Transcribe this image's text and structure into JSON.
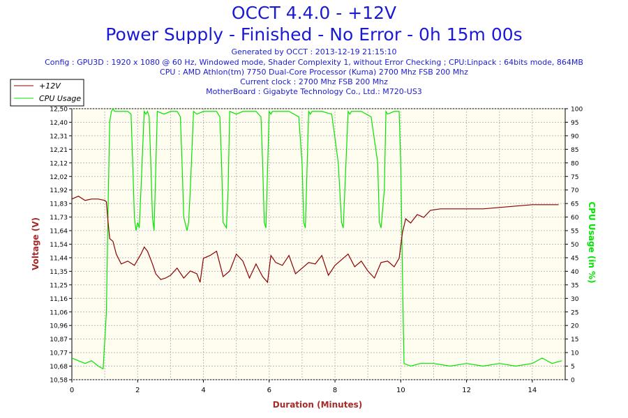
{
  "header": {
    "title": "OCCT 4.4.0 - +12V",
    "subtitle": "Power Supply - Finished - No Error - 0h 15m 00s",
    "info_lines": [
      "Generated by OCCT : 2013-12-19 21:15:10",
      "Config : GPU3D : 1920 x 1080 @ 60 Hz, Windowed mode, Shader Complexity 1, without Error Checking ; CPU:Linpack : 64bits mode, 864MB",
      "CPU : AMD Athlon(tm) 7750 Dual-Core Processor (Kuma) 2700 Mhz FSB 200 Mhz",
      "Current clock : 2700 Mhz FSB 200 Mhz",
      "MotherBoard : Gigabyte Technology Co., Ltd.: M720-US3"
    ]
  },
  "colors": {
    "text_blue": "#1a1ad6",
    "voltage": "#8b0000",
    "cpu": "#00e600",
    "axis_label": "#a52a2a",
    "plot_bg": "#fffcf0",
    "grid": "#bbbbbb"
  },
  "chart_data": {
    "type": "line",
    "xlabel": "Duration (Minutes)",
    "ylabel_left": "Voltage (V)",
    "ylabel_right": "CPU Usage (in %)",
    "xlim": [
      0,
      15
    ],
    "ylim_left": [
      10.58,
      12.5
    ],
    "ylim_right": [
      0,
      100
    ],
    "x_ticks": [
      "0",
      "2",
      "4",
      "6",
      "8",
      "10",
      "12",
      "14"
    ],
    "y_left_ticks": [
      "10,58",
      "10,68",
      "10,77",
      "10,87",
      "10,96",
      "11,06",
      "11,16",
      "11,25",
      "11,35",
      "11,44",
      "11,54",
      "11,64",
      "11,73",
      "11,83",
      "11,92",
      "12,02",
      "12,12",
      "12,21",
      "12,31",
      "12,40",
      "12,50"
    ],
    "y_right_ticks": [
      "0",
      "5",
      "10",
      "15",
      "20",
      "25",
      "30",
      "35",
      "40",
      "45",
      "50",
      "55",
      "60",
      "65",
      "70",
      "75",
      "80",
      "85",
      "90",
      "95",
      "100"
    ],
    "grid": true,
    "legend_position": "top-left",
    "series": [
      {
        "name": "+12V",
        "axis": "left",
        "x": [
          0,
          0.2,
          0.4,
          0.6,
          0.8,
          1.0,
          1.05,
          1.1,
          1.15,
          1.25,
          1.35,
          1.5,
          1.7,
          1.9,
          2.1,
          2.2,
          2.3,
          2.45,
          2.55,
          2.7,
          2.85,
          3.0,
          3.2,
          3.4,
          3.6,
          3.8,
          3.9,
          4.0,
          4.2,
          4.4,
          4.6,
          4.8,
          5.0,
          5.2,
          5.4,
          5.6,
          5.8,
          5.95,
          6.05,
          6.2,
          6.4,
          6.6,
          6.8,
          7.0,
          7.2,
          7.4,
          7.6,
          7.8,
          8.0,
          8.2,
          8.4,
          8.6,
          8.8,
          9.0,
          9.2,
          9.4,
          9.6,
          9.8,
          9.95,
          10.05,
          10.15,
          10.3,
          10.5,
          10.7,
          10.9,
          11.2,
          11.6,
          12.0,
          12.5,
          13.0,
          13.5,
          14.0,
          14.4,
          14.8
        ],
        "values": [
          11.86,
          11.88,
          11.85,
          11.86,
          11.86,
          11.85,
          11.84,
          11.7,
          11.58,
          11.56,
          11.47,
          11.4,
          11.42,
          11.39,
          11.47,
          11.52,
          11.49,
          11.4,
          11.33,
          11.29,
          11.3,
          11.32,
          11.37,
          11.3,
          11.35,
          11.33,
          11.27,
          11.44,
          11.46,
          11.49,
          11.31,
          11.35,
          11.47,
          11.42,
          11.3,
          11.4,
          11.31,
          11.27,
          11.46,
          11.41,
          11.39,
          11.46,
          11.33,
          11.37,
          11.41,
          11.4,
          11.46,
          11.32,
          11.39,
          11.43,
          11.47,
          11.38,
          11.42,
          11.35,
          11.3,
          11.41,
          11.42,
          11.38,
          11.44,
          11.62,
          11.72,
          11.69,
          11.75,
          11.73,
          11.78,
          11.79,
          11.79,
          11.79,
          11.79,
          11.8,
          11.81,
          11.82,
          11.82,
          11.82
        ]
      },
      {
        "name": "CPU Usage",
        "axis": "right",
        "x": [
          0,
          0.2,
          0.4,
          0.6,
          0.8,
          0.95,
          1.05,
          1.1,
          1.15,
          1.2,
          1.25,
          1.3,
          1.5,
          1.7,
          1.8,
          1.85,
          1.9,
          1.95,
          2.0,
          2.05,
          2.1,
          2.2,
          2.25,
          2.3,
          2.35,
          2.4,
          2.45,
          2.5,
          2.6,
          2.8,
          3.0,
          3.2,
          3.3,
          3.35,
          3.4,
          3.5,
          3.55,
          3.6,
          3.7,
          3.8,
          4.0,
          4.2,
          4.4,
          4.5,
          4.55,
          4.6,
          4.7,
          4.75,
          4.8,
          5.0,
          5.2,
          5.4,
          5.6,
          5.75,
          5.8,
          5.85,
          5.9,
          6.0,
          6.05,
          6.1,
          6.3,
          6.6,
          6.9,
          7.0,
          7.05,
          7.1,
          7.2,
          7.25,
          7.3,
          7.6,
          7.9,
          8.1,
          8.2,
          8.25,
          8.3,
          8.4,
          8.45,
          8.5,
          8.8,
          9.1,
          9.3,
          9.35,
          9.4,
          9.5,
          9.55,
          9.6,
          9.8,
          9.95,
          10.0,
          10.05,
          10.1,
          10.3,
          10.6,
          11.0,
          11.5,
          12.0,
          12.5,
          13.0,
          13.5,
          14.0,
          14.3,
          14.6,
          14.9
        ],
        "values": [
          8,
          7,
          6,
          7,
          5,
          4,
          25,
          62,
          95,
          99,
          100,
          99,
          99,
          99,
          98,
          80,
          60,
          55,
          58,
          56,
          70,
          99,
          98,
          99,
          97,
          80,
          60,
          55,
          99,
          98,
          99,
          99,
          97,
          80,
          60,
          55,
          58,
          70,
          99,
          98,
          99,
          99,
          99,
          97,
          80,
          58,
          56,
          70,
          99,
          98,
          99,
          99,
          99,
          97,
          80,
          58,
          56,
          99,
          98,
          99,
          99,
          99,
          97,
          80,
          58,
          56,
          99,
          98,
          99,
          99,
          98,
          80,
          58,
          56,
          70,
          99,
          98,
          99,
          99,
          97,
          80,
          58,
          56,
          70,
          99,
          98,
          99,
          99,
          80,
          40,
          6,
          5,
          6,
          6,
          5,
          6,
          5,
          6,
          5,
          6,
          8,
          6,
          7
        ]
      }
    ]
  }
}
